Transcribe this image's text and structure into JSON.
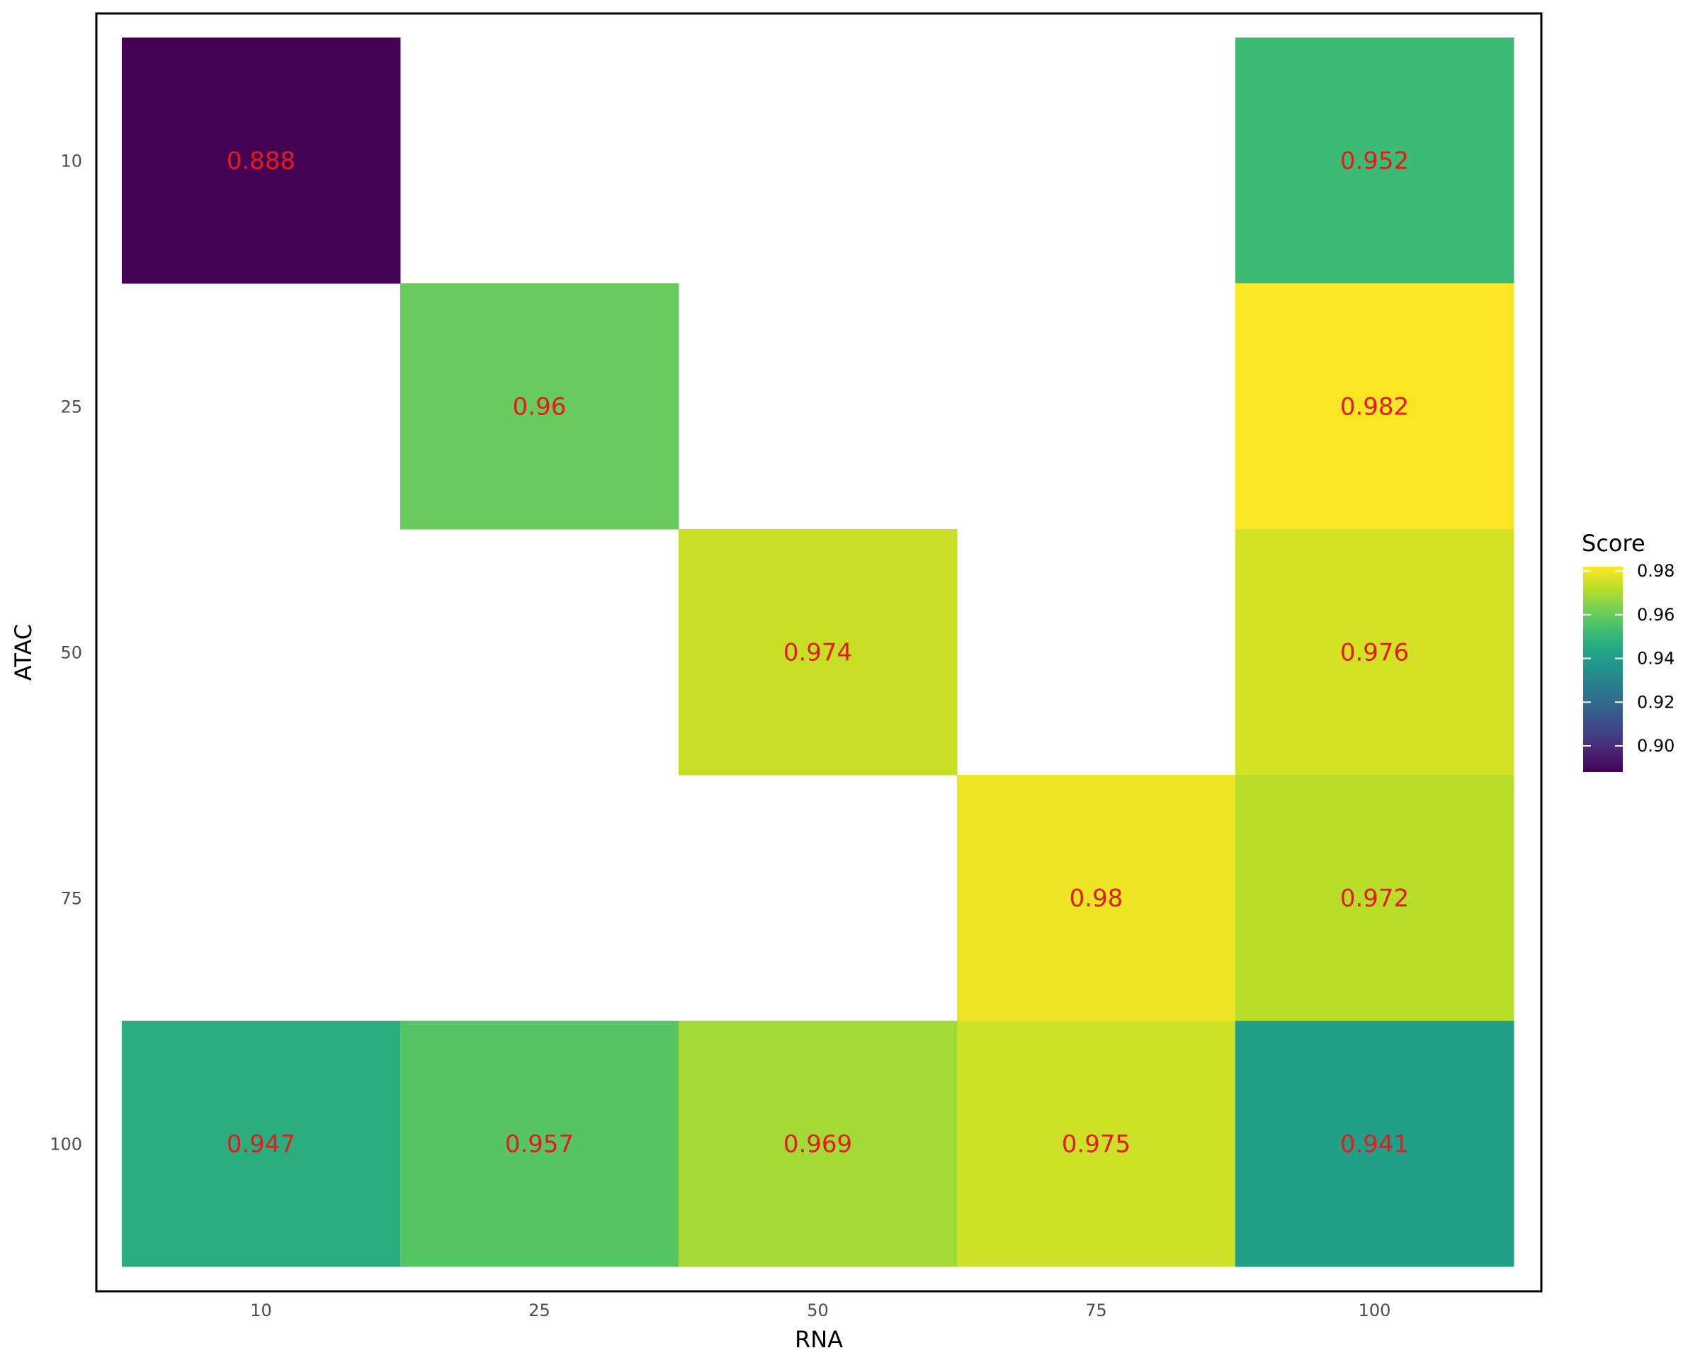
{
  "chart_data": {
    "type": "heatmap",
    "xlabel": "RNA",
    "ylabel": "ATAC",
    "x_categories": [
      "10",
      "25",
      "50",
      "75",
      "100"
    ],
    "y_categories": [
      "10",
      "25",
      "50",
      "75",
      "100"
    ],
    "cells": [
      {
        "x": "10",
        "y": "10",
        "value": 0.888,
        "label": "0.888"
      },
      {
        "x": "100",
        "y": "10",
        "value": 0.952,
        "label": "0.952"
      },
      {
        "x": "25",
        "y": "25",
        "value": 0.96,
        "label": "0.96"
      },
      {
        "x": "100",
        "y": "25",
        "value": 0.982,
        "label": "0.982"
      },
      {
        "x": "50",
        "y": "50",
        "value": 0.974,
        "label": "0.974"
      },
      {
        "x": "100",
        "y": "50",
        "value": 0.976,
        "label": "0.976"
      },
      {
        "x": "75",
        "y": "75",
        "value": 0.98,
        "label": "0.98"
      },
      {
        "x": "100",
        "y": "75",
        "value": 0.972,
        "label": "0.972"
      },
      {
        "x": "10",
        "y": "100",
        "value": 0.947,
        "label": "0.947"
      },
      {
        "x": "25",
        "y": "100",
        "value": 0.957,
        "label": "0.957"
      },
      {
        "x": "50",
        "y": "100",
        "value": 0.969,
        "label": "0.969"
      },
      {
        "x": "75",
        "y": "100",
        "value": 0.975,
        "label": "0.975"
      },
      {
        "x": "100",
        "y": "100",
        "value": 0.941,
        "label": "0.941"
      }
    ],
    "colorscale": "viridis",
    "value_range": [
      0.888,
      0.982
    ],
    "label_color": "#e41a1c",
    "legend": {
      "title": "Score",
      "ticks": [
        0.9,
        0.92,
        0.94,
        0.96,
        0.98
      ],
      "tick_labels": [
        "0.90",
        "0.92",
        "0.94",
        "0.96",
        "0.98"
      ],
      "position": "right"
    },
    "grid": false,
    "border": true
  }
}
